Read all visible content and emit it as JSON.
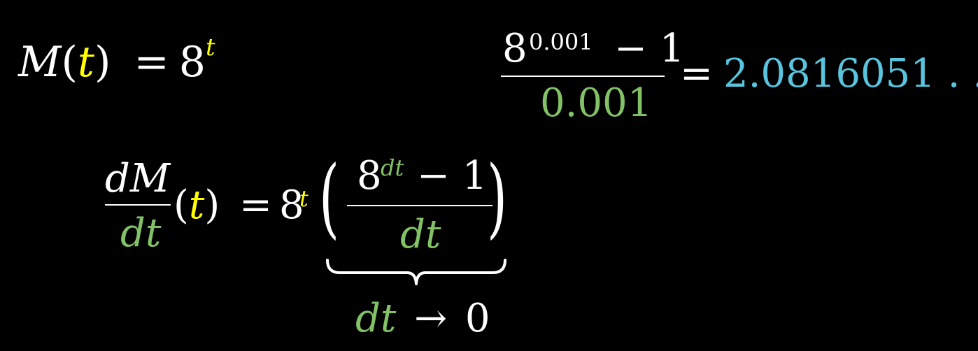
{
  "eq1": {
    "M": "M",
    "lparen": "(",
    "t": "t",
    "rparen": ")",
    "equals": "=",
    "base": "8",
    "exponent": "t"
  },
  "eq2": {
    "num_base": "8",
    "num_exponent": "0.001",
    "num_rest": "− 1",
    "denominator": "0.001",
    "equals": "=",
    "value": "2.0816051 . . ."
  },
  "eq3": {
    "numerator": "dM",
    "denominator": "dt",
    "lparen": "(",
    "t": "t",
    "rparen": ")",
    "equals": "=",
    "base": "8",
    "exponent": "t",
    "big_lparen": "(",
    "big_rparen": ")",
    "inner_num_base": "8",
    "inner_num_exponent": "dt",
    "inner_num_rest": "− 1",
    "inner_denominator": "dt"
  },
  "eq4": {
    "dt": "dt",
    "arrow": "→",
    "zero": "0"
  },
  "colors": {
    "background": "#000000",
    "text": "#ffffff",
    "variable_t": "#ffff00",
    "small_step": "#83c167",
    "result": "#58c4dd"
  }
}
